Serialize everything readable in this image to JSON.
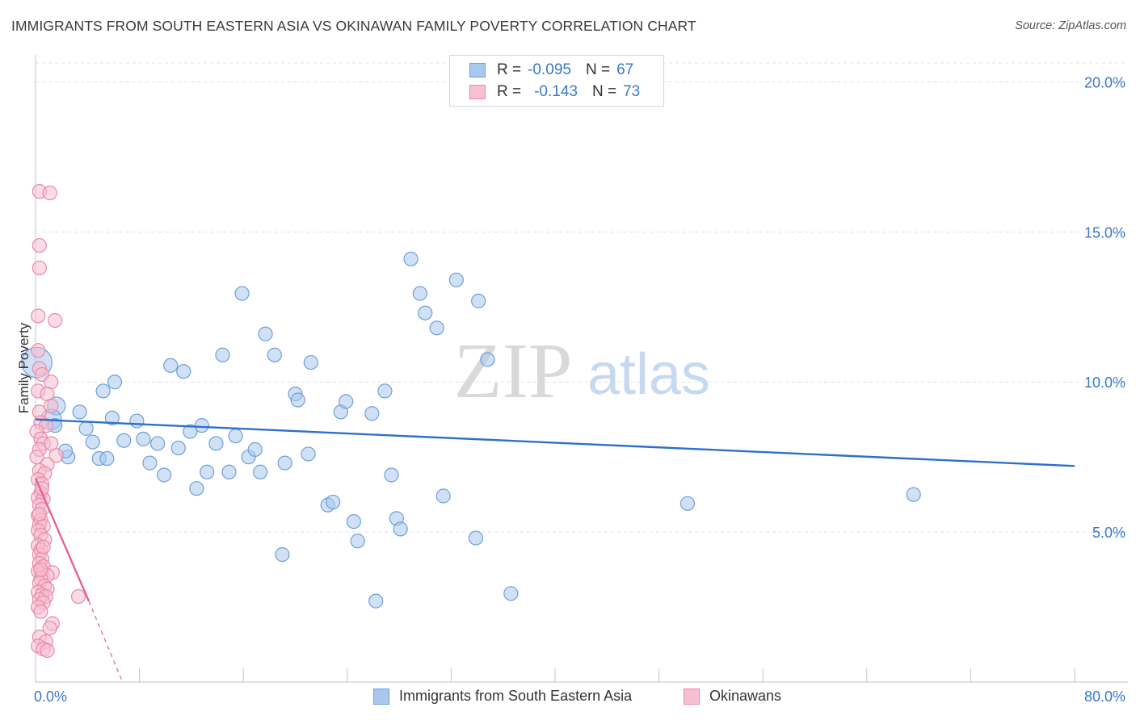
{
  "title": "IMMIGRANTS FROM SOUTH EASTERN ASIA VS OKINAWAN FAMILY POVERTY CORRELATION CHART",
  "source": "Source: ZipAtlas.com",
  "watermark": {
    "zip": "ZIP",
    "atlas": "atlas"
  },
  "legend": {
    "rows": [
      {
        "r_label": "R =",
        "r_value": "-0.095",
        "n_label": "N =",
        "n_value": "67",
        "color": "#a9c8ef",
        "stroke": "#6f9fd8"
      },
      {
        "r_label": "R =",
        "r_value": "-0.143",
        "n_label": "N =",
        "n_value": "73",
        "color": "#f7bfd0",
        "stroke": "#e78aa8"
      }
    ]
  },
  "chart_data": {
    "type": "scatter",
    "xlabel": "",
    "ylabel": "Family Poverty",
    "xlim": [
      0,
      80
    ],
    "ylim": [
      0,
      20.9
    ],
    "x_tick_labels": [
      {
        "value": 0,
        "label": "0.0%"
      },
      {
        "value": 80,
        "label": "80.0%"
      }
    ],
    "y_tick_labels": [
      {
        "value": 5,
        "label": "5.0%"
      },
      {
        "value": 10,
        "label": "10.0%"
      },
      {
        "value": 15,
        "label": "15.0%"
      },
      {
        "value": 20,
        "label": "20.0%"
      }
    ],
    "grid": true,
    "legend_position": "top-center",
    "series": [
      {
        "name": "Immigrants from South Eastern Asia",
        "color": "#a9c8ef",
        "stroke": "#6f9fd8",
        "line_color": "#2f6fc9",
        "trend": {
          "x0": 0,
          "y0": 8.75,
          "x1": 80,
          "y1": 7.2
        },
        "points": [
          [
            0.1,
            10.65,
            2.2
          ],
          [
            1.6,
            9.2,
            1.3
          ],
          [
            1.2,
            8.75,
            1.5
          ],
          [
            3.4,
            9.0,
            1
          ],
          [
            2.5,
            7.5,
            1
          ],
          [
            2.3,
            7.7,
            1
          ],
          [
            5.2,
            9.7,
            1
          ],
          [
            6.1,
            10.0,
            1
          ],
          [
            3.9,
            8.45,
            1
          ],
          [
            4.4,
            8.0,
            1
          ],
          [
            4.9,
            7.45,
            1
          ],
          [
            5.5,
            7.45,
            1
          ],
          [
            5.9,
            8.8,
            1
          ],
          [
            6.8,
            8.05,
            1
          ],
          [
            7.8,
            8.7,
            1
          ],
          [
            8.3,
            8.1,
            1
          ],
          [
            8.8,
            7.3,
            1
          ],
          [
            9.4,
            7.95,
            1
          ],
          [
            9.9,
            6.9,
            1
          ],
          [
            10.4,
            10.55,
            1
          ],
          [
            11.0,
            7.8,
            1
          ],
          [
            11.4,
            10.35,
            1
          ],
          [
            11.9,
            8.35,
            1
          ],
          [
            12.4,
            6.45,
            1
          ],
          [
            12.8,
            8.55,
            1
          ],
          [
            13.2,
            7.0,
            1
          ],
          [
            13.9,
            7.95,
            1
          ],
          [
            14.4,
            10.9,
            1
          ],
          [
            14.9,
            7.0,
            1
          ],
          [
            15.4,
            8.2,
            1
          ],
          [
            15.9,
            12.95,
            1
          ],
          [
            16.4,
            7.5,
            1
          ],
          [
            16.9,
            7.75,
            1
          ],
          [
            17.3,
            7.0,
            1
          ],
          [
            17.7,
            11.6,
            1
          ],
          [
            18.4,
            10.9,
            1
          ],
          [
            19.2,
            7.3,
            1
          ],
          [
            19.0,
            4.25,
            1
          ],
          [
            20.0,
            9.6,
            1
          ],
          [
            20.2,
            9.4,
            1
          ],
          [
            21.0,
            7.6,
            1
          ],
          [
            21.2,
            10.65,
            1
          ],
          [
            22.5,
            5.9,
            1
          ],
          [
            22.9,
            6.0,
            1
          ],
          [
            23.5,
            9.0,
            1
          ],
          [
            23.9,
            9.35,
            1
          ],
          [
            24.5,
            5.35,
            1
          ],
          [
            24.8,
            4.7,
            1
          ],
          [
            25.9,
            8.95,
            1
          ],
          [
            26.2,
            2.7,
            1
          ],
          [
            26.9,
            9.7,
            1
          ],
          [
            27.4,
            6.9,
            1
          ],
          [
            27.8,
            5.45,
            1
          ],
          [
            28.1,
            5.1,
            1
          ],
          [
            28.9,
            14.1,
            1
          ],
          [
            29.6,
            12.95,
            1
          ],
          [
            30.0,
            12.3,
            1
          ],
          [
            30.9,
            11.8,
            1
          ],
          [
            31.4,
            6.2,
            1
          ],
          [
            32.4,
            13.4,
            1
          ],
          [
            33.9,
            4.8,
            1
          ],
          [
            34.1,
            12.7,
            1
          ],
          [
            34.8,
            10.75,
            1
          ],
          [
            36.6,
            2.95,
            1
          ],
          [
            50.2,
            5.95,
            1
          ],
          [
            67.6,
            6.25,
            1
          ],
          [
            1.5,
            8.55,
            1
          ]
        ]
      },
      {
        "name": "Okinawans",
        "color": "#f7bfd0",
        "stroke": "#e78aa8",
        "line_color": "#e4648f",
        "trend": {
          "x0": 0,
          "y0": 6.8,
          "x1": 4.1,
          "y1": 2.7
        },
        "trend_extension": {
          "x0": 4.1,
          "y0": 2.7,
          "x1": 6.7,
          "y1": 0
        },
        "points": [
          [
            0.3,
            16.35,
            1
          ],
          [
            1.1,
            16.3,
            1
          ],
          [
            0.3,
            14.55,
            1
          ],
          [
            0.3,
            13.8,
            1
          ],
          [
            0.2,
            12.2,
            1
          ],
          [
            1.5,
            12.05,
            1
          ],
          [
            0.2,
            11.05,
            1
          ],
          [
            0.3,
            10.45,
            1
          ],
          [
            0.5,
            10.25,
            1
          ],
          [
            1.2,
            10.0,
            1
          ],
          [
            0.2,
            9.7,
            1
          ],
          [
            0.9,
            9.6,
            1
          ],
          [
            0.3,
            9.0,
            1
          ],
          [
            1.2,
            9.2,
            1
          ],
          [
            0.4,
            8.65,
            1
          ],
          [
            0.8,
            8.55,
            1
          ],
          [
            0.1,
            8.35,
            1
          ],
          [
            0.4,
            8.1,
            1
          ],
          [
            0.6,
            7.95,
            1
          ],
          [
            0.3,
            7.75,
            1
          ],
          [
            1.2,
            7.95,
            1
          ],
          [
            1.6,
            7.55,
            1
          ],
          [
            0.1,
            7.5,
            1
          ],
          [
            0.9,
            7.25,
            1
          ],
          [
            0.3,
            7.05,
            1
          ],
          [
            0.7,
            6.95,
            1
          ],
          [
            0.2,
            6.75,
            1
          ],
          [
            0.5,
            6.6,
            1
          ],
          [
            0.4,
            6.3,
            1
          ],
          [
            0.2,
            6.15,
            1
          ],
          [
            0.6,
            6.1,
            1
          ],
          [
            0.3,
            5.9,
            1
          ],
          [
            0.5,
            5.75,
            1
          ],
          [
            0.2,
            5.55,
            1
          ],
          [
            0.4,
            5.4,
            1
          ],
          [
            0.3,
            5.25,
            1
          ],
          [
            0.6,
            5.2,
            1
          ],
          [
            0.2,
            5.05,
            1
          ],
          [
            0.4,
            4.9,
            1
          ],
          [
            0.7,
            4.75,
            1
          ],
          [
            0.2,
            4.55,
            1
          ],
          [
            0.4,
            4.4,
            1
          ],
          [
            0.3,
            4.25,
            1
          ],
          [
            0.5,
            4.1,
            1
          ],
          [
            0.3,
            3.95,
            1
          ],
          [
            0.6,
            3.85,
            1
          ],
          [
            0.2,
            3.7,
            1
          ],
          [
            0.5,
            3.6,
            1
          ],
          [
            1.3,
            3.65,
            1
          ],
          [
            0.9,
            3.55,
            1
          ],
          [
            0.4,
            3.45,
            1
          ],
          [
            0.3,
            3.3,
            1
          ],
          [
            0.7,
            3.2,
            1
          ],
          [
            0.9,
            3.1,
            1
          ],
          [
            0.2,
            3.0,
            1
          ],
          [
            0.5,
            2.9,
            1
          ],
          [
            0.8,
            2.85,
            1
          ],
          [
            3.3,
            2.85,
            1
          ],
          [
            0.3,
            2.75,
            1
          ],
          [
            0.6,
            2.65,
            1
          ],
          [
            0.2,
            2.5,
            1
          ],
          [
            0.4,
            2.35,
            1
          ],
          [
            1.3,
            1.95,
            1
          ],
          [
            1.1,
            1.8,
            1
          ],
          [
            0.3,
            1.5,
            1
          ],
          [
            0.8,
            1.35,
            1
          ],
          [
            0.2,
            1.2,
            1
          ],
          [
            0.6,
            1.1,
            1
          ],
          [
            0.9,
            1.05,
            1
          ],
          [
            0.4,
            3.75,
            1
          ],
          [
            0.3,
            5.6,
            1
          ],
          [
            0.5,
            6.45,
            1
          ],
          [
            0.6,
            4.5,
            1
          ]
        ]
      }
    ]
  }
}
